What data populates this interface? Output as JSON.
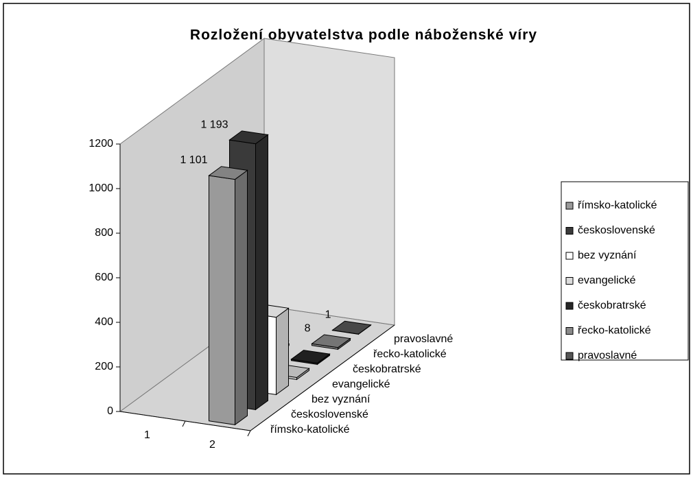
{
  "chart_data": {
    "type": "bar3d",
    "title": "Rozložení obyvatelstva podle náboženské víry",
    "categories": [
      "1",
      "2"
    ],
    "series": [
      {
        "name": "římsko-katolické",
        "color": "#9a9a9a",
        "values": [
          null,
          1101
        ],
        "value_labels": [
          null,
          "1 101"
        ]
      },
      {
        "name": "československé",
        "color": "#3a3a3a",
        "values": [
          null,
          1193
        ],
        "value_labels": [
          null,
          "1 193"
        ]
      },
      {
        "name": "bez vyznání",
        "color": "#ffffff",
        "values": [
          null,
          347
        ]
      },
      {
        "name": "evangelické",
        "color": "#dcdcdc",
        "values": [
          null,
          9
        ]
      },
      {
        "name": "českobratrské",
        "color": "#262626",
        "values": [
          null,
          6
        ]
      },
      {
        "name": "řecko-katolické",
        "color": "#8a8a8a",
        "values": [
          null,
          8
        ]
      },
      {
        "name": "pravoslavné",
        "color": "#555555",
        "values": [
          null,
          1
        ]
      }
    ],
    "ylim": [
      0,
      1200
    ],
    "yticks": [
      0,
      200,
      400,
      600,
      800,
      1000,
      1200
    ],
    "legend": "right"
  }
}
